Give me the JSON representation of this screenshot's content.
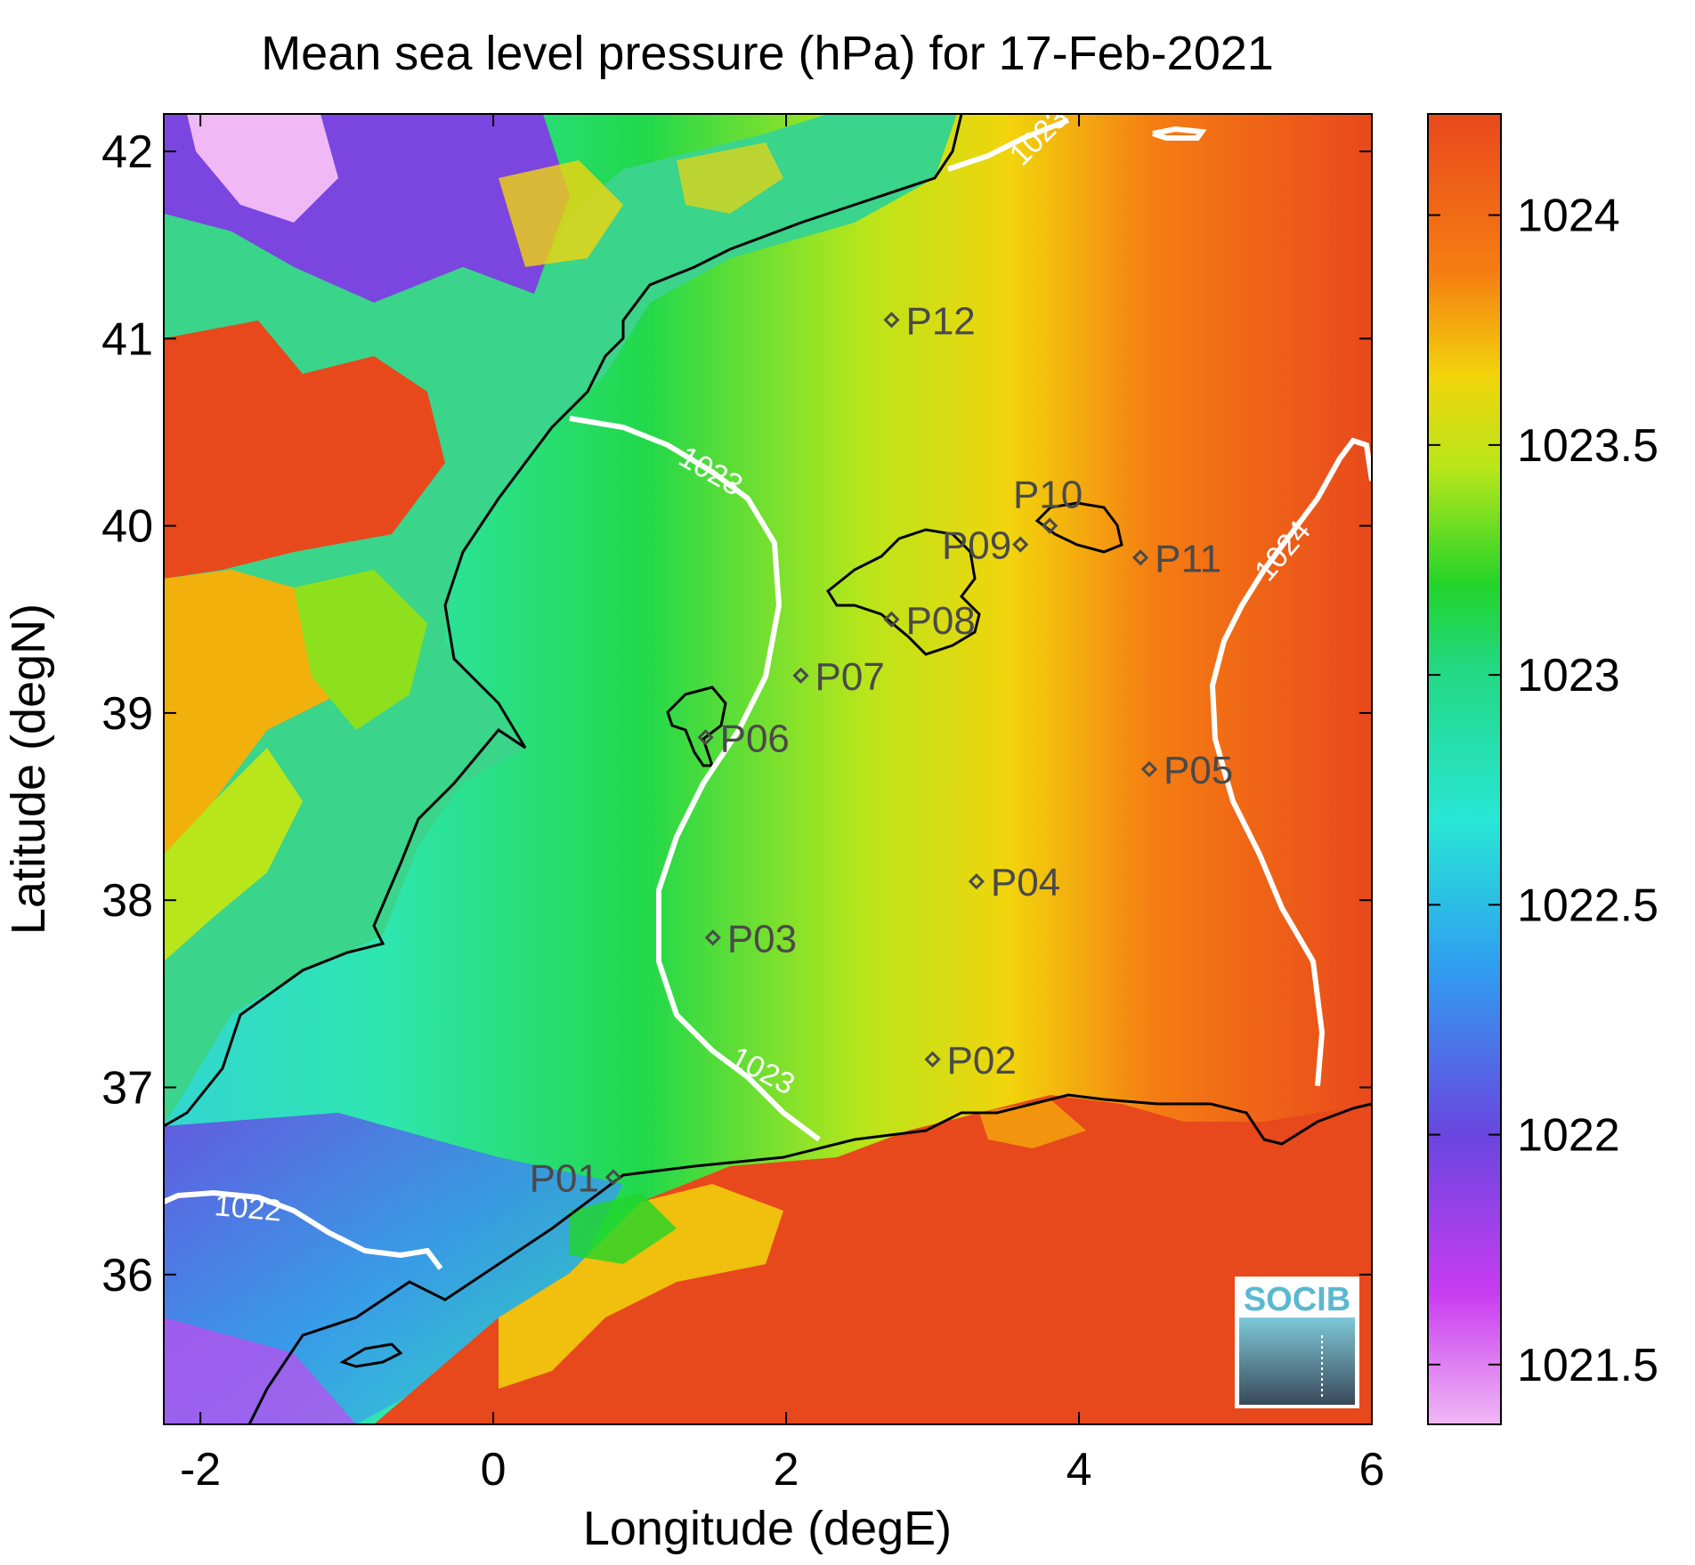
{
  "title": "Mean sea level pressure (hPa) for 17-Feb-2021",
  "xlabel": "Longitude (degE)",
  "ylabel": "Latitude (degN)",
  "xticks": [
    "-2",
    "0",
    "2",
    "4",
    "6"
  ],
  "yticks": [
    "36",
    "37",
    "38",
    "39",
    "40",
    "41",
    "42"
  ],
  "colorbar": {
    "ticks": [
      "1021.5",
      "1022",
      "1022.5",
      "1023",
      "1023.5",
      "1024"
    ]
  },
  "stations": [
    {
      "label": "P01",
      "lon": 0.82,
      "lat": 36.52
    },
    {
      "label": "P02",
      "lon": 3.0,
      "lat": 37.15
    },
    {
      "label": "P03",
      "lon": 1.5,
      "lat": 37.8
    },
    {
      "label": "P04",
      "lon": 3.3,
      "lat": 38.1
    },
    {
      "label": "P05",
      "lon": 4.48,
      "lat": 38.7
    },
    {
      "label": "P06",
      "lon": 1.45,
      "lat": 38.87
    },
    {
      "label": "P07",
      "lon": 2.1,
      "lat": 39.2
    },
    {
      "label": "P08",
      "lon": 2.72,
      "lat": 39.5
    },
    {
      "label": "P09",
      "lon": 3.6,
      "lat": 39.9
    },
    {
      "label": "P10",
      "lon": 3.8,
      "lat": 40.0
    },
    {
      "label": "P11",
      "lon": 4.42,
      "lat": 39.83
    },
    {
      "label": "P12",
      "lon": 2.72,
      "lat": 41.1
    }
  ],
  "contour_labels": [
    "1023",
    "1023",
    "1023",
    "1024",
    "1022"
  ],
  "logo": "SOCIB",
  "colors": {
    "low": "#f0b8f5",
    "mid": "#22d42a",
    "high": "#e8491c"
  }
}
